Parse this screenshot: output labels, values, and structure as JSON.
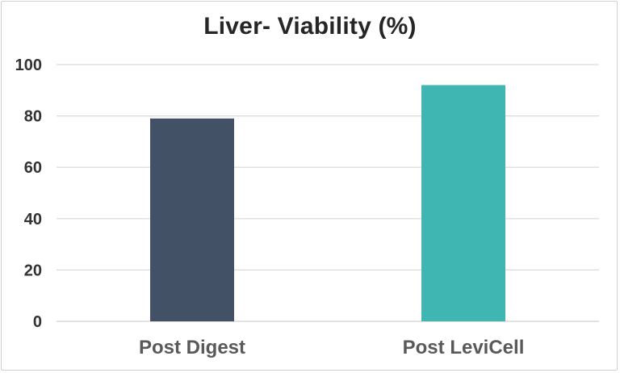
{
  "chart_data": {
    "type": "bar",
    "title": "Liver- Viability (%)",
    "categories": [
      "Post Digest",
      "Post LeviCell"
    ],
    "values": [
      79,
      92
    ],
    "bar_colors": [
      "#425166",
      "#40b6b3"
    ],
    "ylim": [
      0,
      100
    ],
    "yticks": [
      "0",
      "20",
      "40",
      "60",
      "80",
      "100"
    ],
    "ytick_values": [
      0,
      20,
      40,
      60,
      80,
      100
    ],
    "grid": true,
    "gridline_color": "#d9d9d9",
    "xlabel": "",
    "ylabel": ""
  }
}
